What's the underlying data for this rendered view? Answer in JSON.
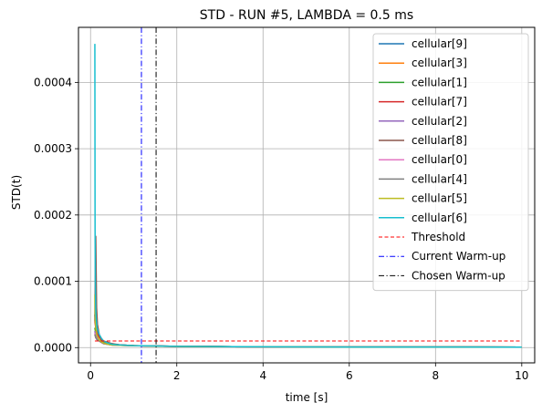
{
  "chart_data": {
    "type": "line",
    "title": "STD - RUN #5, LAMBDA = 0.5 ms",
    "xlabel": "time [s]",
    "ylabel": "STD(t)",
    "xlim": [
      -0.28,
      10.3
    ],
    "ylim": [
      -2.3e-05,
      0.000483
    ],
    "xticks": [
      0,
      2,
      4,
      6,
      8,
      10
    ],
    "xtick_labels": [
      "0",
      "2",
      "4",
      "6",
      "8",
      "10"
    ],
    "yticks": [
      0,
      0.0001,
      0.0002,
      0.0003,
      0.0004
    ],
    "ytick_labels": [
      "0.0000",
      "0.0001",
      "0.0002",
      "0.0003",
      "0.0004"
    ],
    "grid": true,
    "legend_position": "top-right",
    "series": [
      {
        "name": "cellular[9]",
        "color": "#1f77b4",
        "style": "solid",
        "x": [
          0.1,
          0.12,
          0.15,
          0.2,
          0.25,
          0.3,
          0.4,
          0.5,
          0.7,
          1.0,
          1.5,
          2.0,
          3.0,
          5.0,
          10.0
        ],
        "y": [
          5e-05,
          3.2e-05,
          2.5e-05,
          1.8e-05,
          1.2e-05,
          9e-06,
          7e-06,
          5e-06,
          4e-06,
          3e-06,
          2.5e-06,
          2e-06,
          1.5e-06,
          1e-06,
          8e-07
        ]
      },
      {
        "name": "cellular[3]",
        "color": "#ff7f0e",
        "style": "solid",
        "x": [
          0.1,
          0.12,
          0.15,
          0.2,
          0.25,
          0.3,
          0.4,
          0.5,
          0.7,
          1.0,
          1.5,
          2.0,
          3.0,
          5.0,
          10.0
        ],
        "y": [
          2e-05,
          1.5e-05,
          1.2e-05,
          1e-05,
          8e-06,
          6e-06,
          5e-06,
          4e-06,
          3.5e-06,
          3e-06,
          2.2e-06,
          1.8e-06,
          1.4e-06,
          1e-06,
          8e-07
        ]
      },
      {
        "name": "cellular[1]",
        "color": "#2ca02c",
        "style": "solid",
        "x": [
          0.1,
          0.12,
          0.15,
          0.2,
          0.25,
          0.3,
          0.4,
          0.5,
          0.7,
          1.0,
          1.5,
          2.0,
          3.0,
          5.0,
          10.0
        ],
        "y": [
          3e-05,
          2.2e-05,
          1.6e-05,
          1.2e-05,
          1e-05,
          8e-06,
          6e-06,
          5e-06,
          4e-06,
          3e-06,
          2.4e-06,
          2e-06,
          1.5e-06,
          1e-06,
          8e-07
        ]
      },
      {
        "name": "cellular[7]",
        "color": "#d62728",
        "style": "solid",
        "x": [
          0.1,
          0.12,
          0.15,
          0.2,
          0.25,
          0.3,
          0.4,
          0.5,
          0.7,
          1.0,
          1.5,
          2.0,
          3.0,
          5.0,
          10.0
        ],
        "y": [
          4e-05,
          3e-05,
          2.2e-05,
          1.6e-05,
          1.2e-05,
          1e-05,
          7e-06,
          5e-06,
          4e-06,
          3e-06,
          2.5e-06,
          2e-06,
          1.5e-06,
          1e-06,
          8e-07
        ]
      },
      {
        "name": "cellular[2]",
        "color": "#9467bd",
        "style": "solid",
        "x": [
          0.1,
          0.12,
          0.15,
          0.2,
          0.25,
          0.3,
          0.4,
          0.5,
          0.7,
          1.0,
          1.5,
          2.0,
          3.0,
          5.0,
          10.0
        ],
        "y": [
          2.5e-05,
          1.8e-05,
          1.4e-05,
          1.1e-05,
          9e-06,
          7e-06,
          5e-06,
          4e-06,
          3.5e-06,
          3e-06,
          2.2e-06,
          1.8e-06,
          1.4e-06,
          1e-06,
          8e-07
        ]
      },
      {
        "name": "cellular[8]",
        "color": "#8c564b",
        "style": "solid",
        "x": [
          0.1,
          0.12,
          0.14,
          0.16,
          0.2,
          0.25,
          0.3,
          0.4,
          0.5,
          0.7,
          1.0,
          1.5,
          2.0,
          3.0,
          5.0,
          10.0
        ],
        "y": [
          4e-05,
          0.000168,
          6e-05,
          3.5e-05,
          2e-05,
          1.4e-05,
          1e-05,
          8e-06,
          6e-06,
          4e-06,
          3e-06,
          2.5e-06,
          2e-06,
          1.5e-06,
          1e-06,
          8e-07
        ]
      },
      {
        "name": "cellular[0]",
        "color": "#e377c2",
        "style": "solid",
        "x": [
          0.1,
          0.12,
          0.15,
          0.2,
          0.25,
          0.3,
          0.4,
          0.5,
          0.7,
          1.0,
          1.5,
          2.0,
          3.0,
          5.0,
          10.0
        ],
        "y": [
          2.2e-05,
          1.6e-05,
          1.3e-05,
          1e-05,
          8e-06,
          6e-06,
          5e-06,
          4e-06,
          3.5e-06,
          3e-06,
          2.2e-06,
          1.8e-06,
          1.4e-06,
          1e-06,
          8e-07
        ]
      },
      {
        "name": "cellular[4]",
        "color": "#7f7f7f",
        "style": "solid",
        "x": [
          0.1,
          0.12,
          0.15,
          0.2,
          0.25,
          0.3,
          0.4,
          0.5,
          0.7,
          1.0,
          1.5,
          2.0,
          3.0,
          5.0,
          10.0
        ],
        "y": [
          2e-05,
          1.5e-05,
          1.2e-05,
          1e-05,
          8e-06,
          6e-06,
          5e-06,
          4e-06,
          3.5e-06,
          3e-06,
          2.2e-06,
          1.8e-06,
          1.4e-06,
          1e-06,
          8e-07
        ]
      },
      {
        "name": "cellular[5]",
        "color": "#bcbd22",
        "style": "solid",
        "x": [
          0.1,
          0.11,
          0.13,
          0.15,
          0.2,
          0.25,
          0.3,
          0.4,
          0.5,
          0.7,
          1.0,
          1.5,
          2.0,
          3.0,
          5.0,
          10.0
        ],
        "y": [
          8e-05,
          4e-05,
          2.5e-05,
          1.8e-05,
          1.2e-05,
          9e-06,
          7e-06,
          5e-06,
          4e-06,
          3.5e-06,
          3e-06,
          2.2e-06,
          1.8e-06,
          1.4e-06,
          1e-06,
          8e-07
        ]
      },
      {
        "name": "cellular[6]",
        "color": "#17becf",
        "style": "solid",
        "x": [
          0.1,
          0.105,
          0.11,
          0.12,
          0.13,
          0.15,
          0.2,
          0.25,
          0.3,
          0.4,
          0.5,
          0.7,
          1.0,
          1.5,
          2.0,
          3.0,
          5.0,
          10.0
        ],
        "y": [
          0.000458,
          0.00018,
          0.0001,
          6e-05,
          4.5e-05,
          3e-05,
          2e-05,
          1.4e-05,
          1e-05,
          7e-06,
          5e-06,
          4e-06,
          3e-06,
          2.5e-06,
          2e-06,
          1.5e-06,
          1e-06,
          8e-07
        ]
      },
      {
        "name": "Threshold",
        "color": "#ff0000",
        "style": "dashed",
        "x": [
          0.1,
          10.0
        ],
        "y": [
          1e-05,
          1e-05
        ]
      }
    ],
    "vlines": [
      {
        "name": "Current Warm-up",
        "color": "#0000ff",
        "style": "dashdot",
        "x": 1.18
      },
      {
        "name": "Chosen Warm-up",
        "color": "#000000",
        "style": "dashdot",
        "x": 1.52
      }
    ]
  }
}
